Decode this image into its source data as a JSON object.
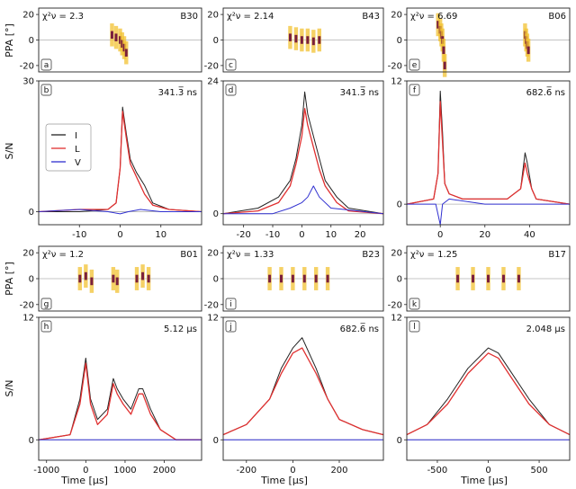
{
  "figure": {
    "ylabel_ppa": "PPA [°]",
    "ylabel_sn": "S/N",
    "xlabel": "Time [μs]",
    "legend": [
      {
        "label": "I",
        "color": "#222222"
      },
      {
        "label": "L",
        "color": "#e03030"
      },
      {
        "label": "V",
        "color": "#3030d0"
      }
    ]
  },
  "chart_data": [
    {
      "type": "line",
      "burst": "B30",
      "chi_label": "χ²ν = 2.3",
      "ppa_letter": "a",
      "sn_letter": "b",
      "resolution": "341.3̅ ns",
      "xlim": [
        -20,
        20
      ],
      "xticks": [
        "-10",
        "0",
        "10"
      ],
      "xtick_values": [
        -10,
        0,
        10
      ],
      "ppa_ylim": [
        -25,
        25
      ],
      "ppa_yticks": [
        "20",
        "0",
        "-20"
      ],
      "ppa_ytick_values": [
        20,
        0,
        -20
      ],
      "sn_ylim": [
        -3,
        30
      ],
      "sn_yticks": [
        "30",
        "0"
      ],
      "sn_ytick_values": [
        30,
        0
      ],
      "ppa_points": [
        [
          -2,
          4
        ],
        [
          -1,
          2
        ],
        [
          0,
          0
        ],
        [
          0.5,
          -3
        ],
        [
          1,
          -6
        ],
        [
          1.5,
          -10
        ]
      ],
      "series": [
        {
          "name": "I",
          "x": [
            -20,
            -10,
            -3,
            -1,
            0,
            0.6,
            1.5,
            2.5,
            4,
            6,
            8,
            12,
            20
          ],
          "y": [
            0,
            0,
            0.5,
            2,
            10,
            24,
            18,
            12,
            9,
            6,
            2,
            0.5,
            0
          ]
        },
        {
          "name": "L",
          "x": [
            -20,
            -10,
            -3,
            -1,
            0,
            0.6,
            1.5,
            2.5,
            4,
            6,
            8,
            12,
            20
          ],
          "y": [
            0,
            0.5,
            0.5,
            2,
            10,
            23,
            17,
            11,
            8,
            4,
            1.5,
            0.5,
            0
          ]
        },
        {
          "name": "V",
          "x": [
            -20,
            -10,
            -3,
            0,
            2,
            5,
            10,
            20
          ],
          "y": [
            0,
            0.5,
            0,
            -0.5,
            0,
            0.5,
            0,
            0
          ]
        }
      ]
    },
    {
      "type": "line",
      "burst": "B43",
      "chi_label": "χ²ν = 2.14",
      "ppa_letter": "c",
      "sn_letter": "d",
      "resolution": "341.3̅ ns",
      "xlim": [
        -27,
        28
      ],
      "xticks": [
        "-20",
        "-10",
        "0",
        "10",
        "20"
      ],
      "xtick_values": [
        -20,
        -10,
        0,
        10,
        20
      ],
      "ppa_ylim": [
        -25,
        25
      ],
      "ppa_yticks": [
        "20",
        "0",
        "-20"
      ],
      "ppa_ytick_values": [
        20,
        0,
        -20
      ],
      "sn_ylim": [
        -2,
        24
      ],
      "sn_yticks": [
        "24",
        "0"
      ],
      "sn_ytick_values": [
        24,
        0
      ],
      "ppa_points": [
        [
          -4,
          2
        ],
        [
          -2,
          1
        ],
        [
          0,
          0
        ],
        [
          2,
          0
        ],
        [
          4,
          -1
        ],
        [
          6,
          0
        ]
      ],
      "series": [
        {
          "name": "I",
          "x": [
            -27,
            -15,
            -8,
            -4,
            -2,
            0,
            1,
            2,
            4,
            6,
            8,
            12,
            16,
            28
          ],
          "y": [
            0,
            1,
            3,
            6,
            10,
            16,
            22,
            18,
            14,
            10,
            6,
            3,
            1,
            0
          ]
        },
        {
          "name": "L",
          "x": [
            -27,
            -15,
            -8,
            -4,
            -2,
            0,
            1,
            2,
            4,
            6,
            8,
            12,
            16,
            28
          ],
          "y": [
            0,
            0.5,
            2,
            5,
            9,
            14,
            19,
            16,
            12,
            8,
            5,
            2,
            0.5,
            0
          ]
        },
        {
          "name": "V",
          "x": [
            -27,
            -10,
            -4,
            0,
            2,
            4,
            6,
            10,
            28
          ],
          "y": [
            0,
            0,
            1,
            2,
            3,
            5,
            3,
            1,
            0
          ]
        }
      ]
    },
    {
      "type": "line",
      "burst": "B06",
      "chi_label": "χ²ν = 6.69",
      "ppa_letter": "e",
      "sn_letter": "f",
      "resolution": "682.6̅ ns",
      "xlim": [
        -15,
        58
      ],
      "xticks": [
        "0",
        "20",
        "40"
      ],
      "xtick_values": [
        0,
        20,
        40
      ],
      "ppa_ylim": [
        -25,
        25
      ],
      "ppa_yticks": [
        "20",
        "0",
        "-20"
      ],
      "ppa_ytick_values": [
        20,
        0,
        -20
      ],
      "sn_ylim": [
        -2,
        12
      ],
      "sn_yticks": [
        "12",
        "0"
      ],
      "sn_ytick_values": [
        12,
        0
      ],
      "ppa_points": [
        [
          -1,
          12
        ],
        [
          0,
          8
        ],
        [
          0.5,
          4
        ],
        [
          1,
          0
        ],
        [
          1.5,
          -8
        ],
        [
          2,
          -20
        ],
        [
          38,
          4
        ],
        [
          38.5,
          0
        ],
        [
          39,
          -4
        ],
        [
          39.5,
          -8
        ]
      ],
      "series": [
        {
          "name": "I",
          "x": [
            -15,
            -3,
            -1,
            0,
            1,
            2,
            4,
            10,
            30,
            36,
            38,
            39,
            41,
            43,
            58
          ],
          "y": [
            0,
            0.5,
            3,
            11,
            7,
            2,
            1,
            0.5,
            0.5,
            1.5,
            5,
            4,
            1.5,
            0.5,
            0
          ]
        },
        {
          "name": "L",
          "x": [
            -15,
            -3,
            -1,
            0,
            1,
            2,
            4,
            10,
            30,
            36,
            38,
            39,
            41,
            43,
            58
          ],
          "y": [
            0,
            0.5,
            3,
            10,
            6,
            2,
            1,
            0.5,
            0.5,
            1.5,
            4,
            3,
            1.5,
            0.5,
            0
          ]
        },
        {
          "name": "V",
          "x": [
            -15,
            -2,
            0,
            1,
            4,
            20,
            40,
            58
          ],
          "y": [
            0,
            0,
            -2,
            0,
            0.5,
            0,
            0,
            0
          ]
        }
      ]
    },
    {
      "type": "line",
      "burst": "B01",
      "chi_label": "χ²ν = 1.2",
      "ppa_letter": "g",
      "sn_letter": "h",
      "resolution": "5.12 μs",
      "xlim": [
        -1200,
        2950
      ],
      "xticks": [
        "-1000",
        "0",
        "1000",
        "2000"
      ],
      "xtick_values": [
        -1000,
        0,
        1000,
        2000
      ],
      "ppa_ylim": [
        -25,
        25
      ],
      "ppa_yticks": [
        "20",
        "0",
        "-20"
      ],
      "ppa_ytick_values": [
        20,
        0,
        -20
      ],
      "sn_ylim": [
        -2,
        12
      ],
      "sn_yticks": [
        "12",
        "0"
      ],
      "sn_ytick_values": [
        12,
        0
      ],
      "ppa_points": [
        [
          -150,
          0
        ],
        [
          0,
          2
        ],
        [
          150,
          -2
        ],
        [
          700,
          0
        ],
        [
          800,
          -2
        ],
        [
          1300,
          0
        ],
        [
          1450,
          2
        ],
        [
          1600,
          0
        ]
      ],
      "series": [
        {
          "name": "I",
          "x": [
            -1200,
            -400,
            -150,
            0,
            120,
            300,
            550,
            700,
            800,
            950,
            1150,
            1350,
            1450,
            1650,
            1900,
            2300,
            2950
          ],
          "y": [
            0,
            0.5,
            4,
            8,
            4,
            2,
            3,
            6,
            5,
            4,
            3,
            5,
            5,
            3,
            1,
            0,
            0
          ]
        },
        {
          "name": "L",
          "x": [
            -1200,
            -400,
            -150,
            0,
            120,
            300,
            550,
            700,
            800,
            950,
            1150,
            1350,
            1450,
            1650,
            1900,
            2300,
            2950
          ],
          "y": [
            0,
            0.5,
            3.5,
            7.5,
            3.5,
            1.5,
            2.5,
            5.5,
            4.5,
            3.5,
            2.5,
            4.5,
            4.5,
            2.5,
            1,
            0,
            0
          ]
        },
        {
          "name": "V",
          "x": [
            -1200,
            0,
            1000,
            2000,
            2950
          ],
          "y": [
            0,
            0,
            0,
            0,
            0
          ]
        }
      ]
    },
    {
      "type": "line",
      "burst": "B23",
      "chi_label": "χ²ν = 1.33",
      "ppa_letter": "i",
      "sn_letter": "j",
      "resolution": "682.6̅ ns",
      "xlim": [
        -300,
        390
      ],
      "xticks": [
        "-200",
        "0",
        "200"
      ],
      "xtick_values": [
        -200,
        0,
        200
      ],
      "ppa_ylim": [
        -25,
        25
      ],
      "ppa_yticks": [
        "20",
        "0",
        "-20"
      ],
      "ppa_ytick_values": [
        20,
        0,
        -20
      ],
      "sn_ylim": [
        -2,
        12
      ],
      "sn_yticks": [
        "12",
        "0"
      ],
      "sn_ytick_values": [
        12,
        0
      ],
      "ppa_points": [
        [
          -100,
          0
        ],
        [
          -50,
          0
        ],
        [
          0,
          0
        ],
        [
          50,
          0
        ],
        [
          100,
          0
        ],
        [
          150,
          0
        ]
      ],
      "series": [
        {
          "name": "I",
          "x": [
            -300,
            -200,
            -100,
            -50,
            0,
            40,
            100,
            150,
            200,
            300,
            390
          ],
          "y": [
            0.5,
            1.5,
            4,
            7,
            9,
            10,
            7,
            4,
            2,
            1,
            0.5
          ]
        },
        {
          "name": "L",
          "x": [
            -300,
            -200,
            -100,
            -50,
            0,
            40,
            100,
            150,
            200,
            300,
            390
          ],
          "y": [
            0.5,
            1.5,
            4,
            6.5,
            8.5,
            9,
            6.5,
            4,
            2,
            1,
            0.5
          ]
        },
        {
          "name": "V",
          "x": [
            -300,
            0,
            390
          ],
          "y": [
            0,
            0,
            0
          ]
        }
      ]
    },
    {
      "type": "line",
      "burst": "B17",
      "chi_label": "χ²ν = 1.25",
      "ppa_letter": "k",
      "sn_letter": "l",
      "resolution": "2.048 μs",
      "xlim": [
        -800,
        800
      ],
      "xticks": [
        "-500",
        "0",
        "500"
      ],
      "xtick_values": [
        -500,
        0,
        500
      ],
      "ppa_ylim": [
        -25,
        25
      ],
      "ppa_yticks": [
        "20",
        "0",
        "-20"
      ],
      "ppa_ytick_values": [
        20,
        0,
        -20
      ],
      "sn_ylim": [
        -2,
        12
      ],
      "sn_yticks": [
        "12",
        "0"
      ],
      "sn_ytick_values": [
        12,
        0
      ],
      "ppa_points": [
        [
          -300,
          0
        ],
        [
          -150,
          0
        ],
        [
          0,
          0
        ],
        [
          150,
          0
        ],
        [
          300,
          0
        ]
      ],
      "series": [
        {
          "name": "I",
          "x": [
            -800,
            -600,
            -400,
            -200,
            0,
            100,
            200,
            400,
            600,
            800
          ],
          "y": [
            0.5,
            1.5,
            4,
            7,
            9,
            8.5,
            7,
            4,
            1.5,
            0.5
          ]
        },
        {
          "name": "L",
          "x": [
            -800,
            -600,
            -400,
            -200,
            0,
            100,
            200,
            400,
            600,
            800
          ],
          "y": [
            0.5,
            1.5,
            3.5,
            6.5,
            8.5,
            8,
            6.5,
            3.5,
            1.5,
            0.5
          ]
        },
        {
          "name": "V",
          "x": [
            -800,
            0,
            800
          ],
          "y": [
            0,
            0,
            0
          ]
        }
      ]
    }
  ]
}
